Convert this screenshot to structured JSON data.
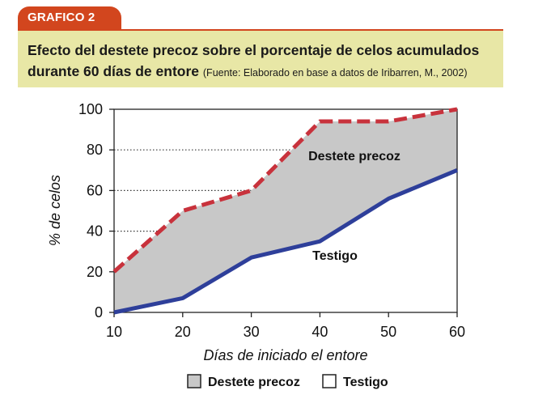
{
  "header": {
    "tag": "GRAFICO 2",
    "title_line1": "Efecto del destete precoz sobre el porcentaje de celos acumulados",
    "title_line2": "durante 60 días de entore",
    "source": "(Fuente: Elaborado en base a datos de Iribarren, M., 2002)"
  },
  "chart_data": {
    "type": "area",
    "x": [
      10,
      20,
      30,
      40,
      50,
      60
    ],
    "series": [
      {
        "name": "Destete precoz",
        "values": [
          20,
          50,
          60,
          94,
          94,
          100
        ],
        "color": "#c8323c",
        "line_style": "dashed"
      },
      {
        "name": "Testigo",
        "values": [
          0,
          7,
          27,
          35,
          56,
          70
        ],
        "color": "#2e3f9a",
        "line_style": "solid"
      }
    ],
    "fill_between_color": "#c8c8c8",
    "xlabel": "Días de iniciado el entore",
    "ylabel": "% de celos",
    "xlim": [
      10,
      60
    ],
    "ylim": [
      0,
      100
    ],
    "x_ticks": [
      "10",
      "20",
      "30",
      "40",
      "50",
      "60"
    ],
    "y_ticks": [
      "0",
      "20",
      "40",
      "60",
      "80",
      "100"
    ],
    "grid": "dotted horizontal lines at 20, 40, 60, 80 to the left of the Destete precoz line",
    "annotations": [
      "Destete precoz",
      "Testigo"
    ],
    "legend": {
      "placement": "bottom",
      "items": [
        {
          "label": "Destete precoz",
          "swatch": "#c8c8c8"
        },
        {
          "label": "Testigo",
          "swatch": "#ffffff"
        }
      ]
    }
  }
}
